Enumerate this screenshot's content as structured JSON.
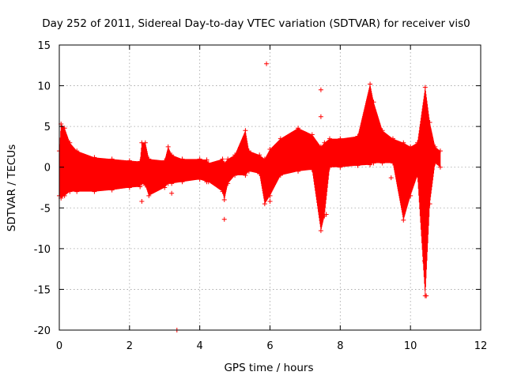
{
  "chart_data": {
    "type": "scatter",
    "title": "Day 252 of 2011, Sidereal Day-to-day VTEC variation (SDTVAR) for receiver vis0",
    "xlabel": "GPS time / hours",
    "ylabel": "SDTVAR / TECUs",
    "xlim": [
      0,
      12
    ],
    "ylim": [
      -20,
      15
    ],
    "xticks": [
      0,
      2,
      4,
      6,
      8,
      10,
      12
    ],
    "yticks": [
      -20,
      -15,
      -10,
      -5,
      0,
      5,
      10,
      15
    ],
    "xtick_labels": [
      "0",
      "2",
      "4",
      "6",
      "8",
      "10",
      "12"
    ],
    "ytick_labels": [
      "-20",
      "-15",
      "-10",
      "-5",
      "0",
      "5",
      "10",
      "15"
    ],
    "grid": true,
    "marker": "+",
    "series_color": "#ff0000",
    "series": [
      {
        "name": "SDTVAR",
        "band": [
          {
            "x": 0.0,
            "lo": -3.5,
            "hi": 2.0
          },
          {
            "x": 0.05,
            "lo": -3.8,
            "hi": 5.3
          },
          {
            "x": 0.15,
            "lo": -3.5,
            "hi": 4.8
          },
          {
            "x": 0.3,
            "lo": -3.0,
            "hi": 3.0
          },
          {
            "x": 0.5,
            "lo": -3.0,
            "hi": 2.0
          },
          {
            "x": 1.0,
            "lo": -3.0,
            "hi": 1.2
          },
          {
            "x": 1.5,
            "lo": -2.8,
            "hi": 1.0
          },
          {
            "x": 2.0,
            "lo": -2.5,
            "hi": 0.8
          },
          {
            "x": 2.3,
            "lo": -2.4,
            "hi": 0.7
          },
          {
            "x": 2.35,
            "lo": -2.0,
            "hi": 3.0
          },
          {
            "x": 2.45,
            "lo": -2.2,
            "hi": 3.0
          },
          {
            "x": 2.55,
            "lo": -3.5,
            "hi": 1.0
          },
          {
            "x": 3.0,
            "lo": -2.5,
            "hi": 0.8
          },
          {
            "x": 3.1,
            "lo": -2.0,
            "hi": 2.5
          },
          {
            "x": 3.2,
            "lo": -2.0,
            "hi": 1.5
          },
          {
            "x": 3.5,
            "lo": -1.8,
            "hi": 1.0
          },
          {
            "x": 4.0,
            "lo": -1.5,
            "hi": 1.0
          },
          {
            "x": 4.2,
            "lo": -1.8,
            "hi": 0.9
          },
          {
            "x": 4.25,
            "lo": -1.8,
            "hi": 0.5
          },
          {
            "x": 4.65,
            "lo": -3.0,
            "hi": 1.0
          },
          {
            "x": 4.7,
            "lo": -4.0,
            "hi": 0.5
          },
          {
            "x": 4.8,
            "lo": -2.0,
            "hi": 1.0
          },
          {
            "x": 5.0,
            "lo": -1.0,
            "hi": 1.5
          },
          {
            "x": 5.3,
            "lo": -1.0,
            "hi": 4.5
          },
          {
            "x": 5.4,
            "lo": -0.5,
            "hi": 2.0
          },
          {
            "x": 5.7,
            "lo": -0.8,
            "hi": 1.5
          },
          {
            "x": 5.85,
            "lo": -4.5,
            "hi": 1.0
          },
          {
            "x": 6.0,
            "lo": -3.5,
            "hi": 2.2
          },
          {
            "x": 6.3,
            "lo": -1.0,
            "hi": 3.5
          },
          {
            "x": 6.8,
            "lo": -0.5,
            "hi": 4.8
          },
          {
            "x": 7.2,
            "lo": -0.3,
            "hi": 4.0
          },
          {
            "x": 7.45,
            "lo": -7.8,
            "hi": 2.5
          },
          {
            "x": 7.55,
            "lo": -6.0,
            "hi": 3.0
          },
          {
            "x": 7.7,
            "lo": 0.0,
            "hi": 3.5
          },
          {
            "x": 8.0,
            "lo": 0.0,
            "hi": 3.5
          },
          {
            "x": 8.5,
            "lo": 0.2,
            "hi": 3.8
          },
          {
            "x": 8.85,
            "lo": 0.3,
            "hi": 10.2
          },
          {
            "x": 8.95,
            "lo": 0.5,
            "hi": 8.0
          },
          {
            "x": 9.2,
            "lo": 0.5,
            "hi": 4.5
          },
          {
            "x": 9.5,
            "lo": 0.5,
            "hi": 3.5
          },
          {
            "x": 9.8,
            "lo": -6.5,
            "hi": 3.0
          },
          {
            "x": 10.0,
            "lo": -3.5,
            "hi": 2.5
          },
          {
            "x": 10.2,
            "lo": -1.0,
            "hi": 3.0
          },
          {
            "x": 10.42,
            "lo": -15.8,
            "hi": 9.8
          },
          {
            "x": 10.55,
            "lo": -4.5,
            "hi": 5.5
          },
          {
            "x": 10.7,
            "lo": 0.5,
            "hi": 2.5
          },
          {
            "x": 10.85,
            "lo": 0.0,
            "hi": 2.0
          }
        ],
        "outliers": [
          {
            "x": 2.35,
            "y": -4.2
          },
          {
            "x": 3.2,
            "y": -3.2
          },
          {
            "x": 3.35,
            "y": -20.0
          },
          {
            "x": 4.7,
            "y": -6.4
          },
          {
            "x": 5.9,
            "y": 12.7
          },
          {
            "x": 6.0,
            "y": -4.2
          },
          {
            "x": 7.45,
            "y": 9.5
          },
          {
            "x": 7.45,
            "y": 6.2
          },
          {
            "x": 7.6,
            "y": -5.8
          },
          {
            "x": 9.45,
            "y": -1.3
          },
          {
            "x": 10.4,
            "y": -11.5
          },
          {
            "x": 10.45,
            "y": -15.8
          }
        ]
      }
    ]
  }
}
